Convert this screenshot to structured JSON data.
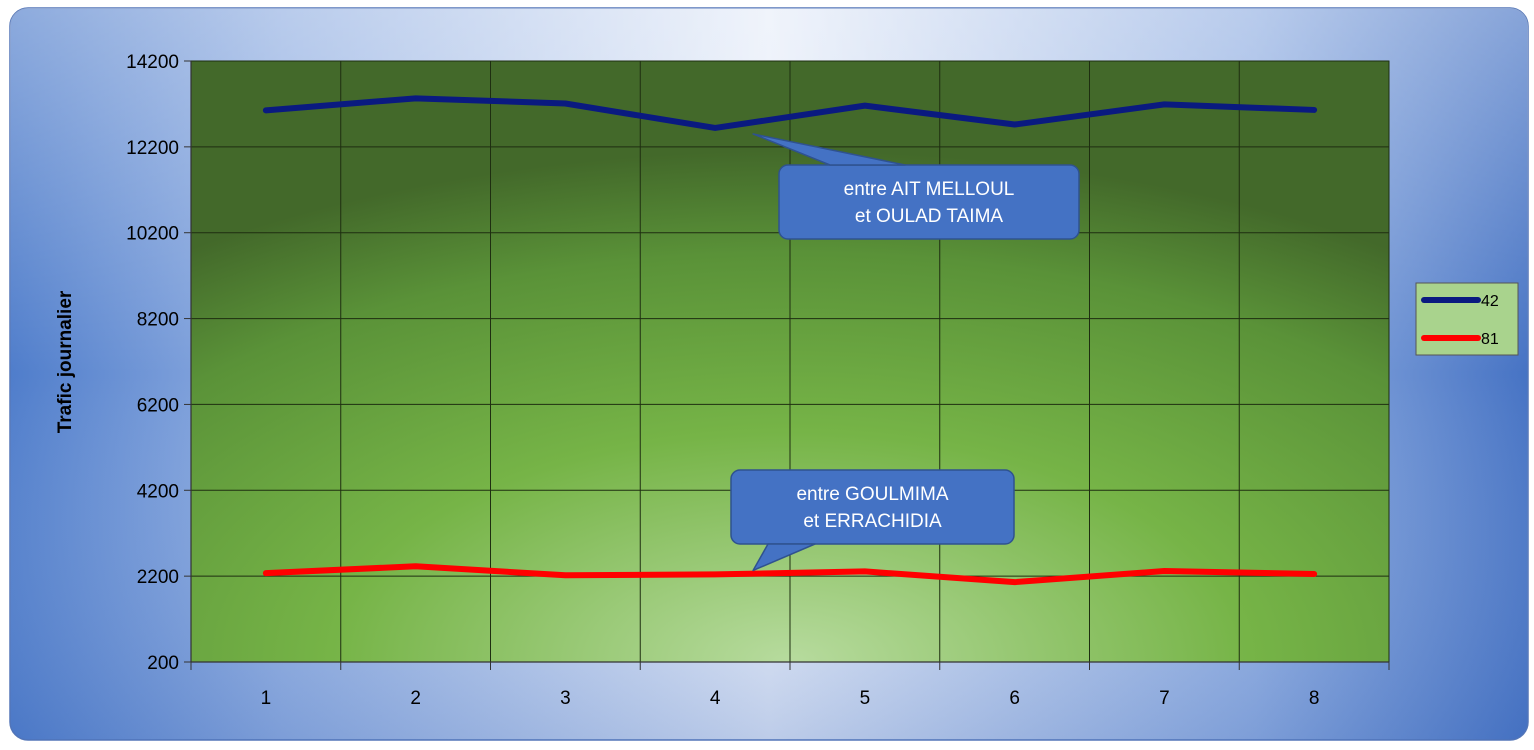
{
  "chart_data": {
    "type": "line",
    "title": "",
    "xlabel": "",
    "ylabel": "Trafic journalier",
    "ylim": [
      200,
      14200
    ],
    "yticks": [
      200,
      2200,
      4200,
      6200,
      8200,
      10200,
      12200,
      14200
    ],
    "categories": [
      "1",
      "2",
      "3",
      "4",
      "5",
      "6",
      "7",
      "8"
    ],
    "grid": true,
    "legend_position": "right",
    "series": [
      {
        "name": "42",
        "color": "#0A1A80",
        "values": [
          13050,
          13330,
          13210,
          12640,
          13160,
          12720,
          13190,
          13060
        ]
      },
      {
        "name": "81",
        "color": "#FF0000",
        "values": [
          2270,
          2430,
          2220,
          2240,
          2310,
          2060,
          2320,
          2250
        ]
      }
    ],
    "annotations": [
      {
        "series": "42",
        "point_index": 3,
        "lines": [
          "entre AIT MELLOUL",
          "et OULAD TAIMA"
        ]
      },
      {
        "series": "81",
        "point_index": 3,
        "lines": [
          "entre GOULMIMA",
          "et ERRACHIDIA"
        ]
      }
    ]
  }
}
